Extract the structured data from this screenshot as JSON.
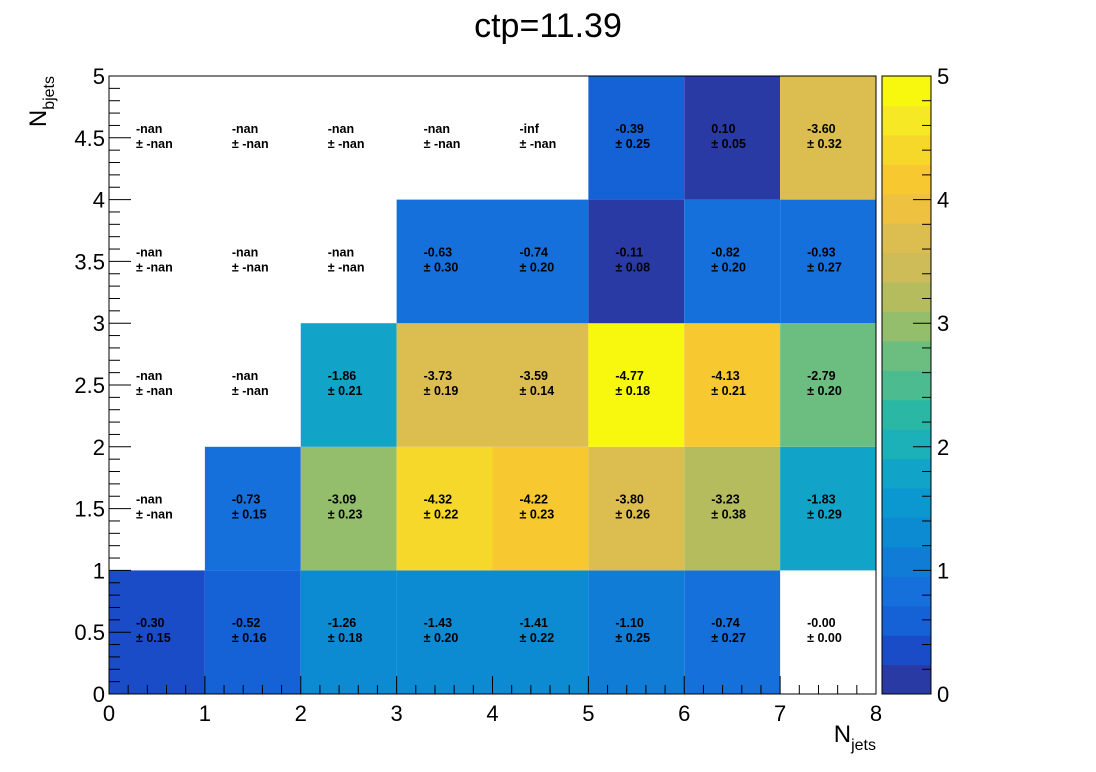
{
  "chart_data": {
    "type": "heatmap",
    "title": "ctp=11.39",
    "xlabel": {
      "main": "N",
      "sub": "jets"
    },
    "ylabel": {
      "main": "N",
      "sub": "bjets"
    },
    "xlim": [
      0,
      8
    ],
    "ylim": [
      0,
      5
    ],
    "x_ticks": [
      "0",
      "1",
      "2",
      "3",
      "4",
      "5",
      "6",
      "7",
      "8"
    ],
    "y_ticks": [
      "0",
      "0.5",
      "1",
      "1.5",
      "2",
      "2.5",
      "3",
      "3.5",
      "4",
      "4.5",
      "5"
    ],
    "colorbar": {
      "min": 0,
      "max": 5,
      "ticks": [
        "0",
        "1",
        "2",
        "3",
        "4",
        "5"
      ]
    },
    "cells": [
      {
        "x": 0,
        "y": 0,
        "value": -0.3,
        "text": "-0.30",
        "error": "± 0.15",
        "fill": 0.32
      },
      {
        "x": 1,
        "y": 0,
        "value": -0.52,
        "text": "-0.52",
        "error": "± 0.16",
        "fill": 0.55
      },
      {
        "x": 2,
        "y": 0,
        "value": -1.26,
        "text": "-1.26",
        "error": "± 0.18",
        "fill": 1.42
      },
      {
        "x": 3,
        "y": 0,
        "value": -1.43,
        "text": "-1.43",
        "error": "± 0.20",
        "fill": 1.42
      },
      {
        "x": 4,
        "y": 0,
        "value": -1.41,
        "text": "-1.41",
        "error": "± 0.22",
        "fill": 1.42
      },
      {
        "x": 5,
        "y": 0,
        "value": -1.1,
        "text": "-1.10",
        "error": "± 0.25",
        "fill": 1.1
      },
      {
        "x": 6,
        "y": 0,
        "value": -0.74,
        "text": "-0.74",
        "error": "± 0.27",
        "fill": 0.85
      },
      {
        "x": 7,
        "y": 0,
        "value": -0.0,
        "text": "-0.00",
        "error": "± 0.00",
        "fill": null
      },
      {
        "x": 0,
        "y": 1,
        "value": null,
        "text": "-nan",
        "error": "± -nan",
        "fill": null
      },
      {
        "x": 1,
        "y": 1,
        "value": -0.73,
        "text": "-0.73",
        "error": "± 0.15",
        "fill": 0.73
      },
      {
        "x": 2,
        "y": 1,
        "value": -3.09,
        "text": "-3.09",
        "error": "± 0.23",
        "fill": 3.09
      },
      {
        "x": 3,
        "y": 1,
        "value": -4.32,
        "text": "-4.32",
        "error": "± 0.22",
        "fill": 4.32
      },
      {
        "x": 4,
        "y": 1,
        "value": -4.22,
        "text": "-4.22",
        "error": "± 0.23",
        "fill": 4.22
      },
      {
        "x": 5,
        "y": 1,
        "value": -3.8,
        "text": "-3.80",
        "error": "± 0.26",
        "fill": 3.8
      },
      {
        "x": 6,
        "y": 1,
        "value": -3.23,
        "text": "-3.23",
        "error": "± 0.38",
        "fill": 3.23
      },
      {
        "x": 7,
        "y": 1,
        "value": -1.83,
        "text": "-1.83",
        "error": "± 0.29",
        "fill": 1.83
      },
      {
        "x": 0,
        "y": 2,
        "value": null,
        "text": "-nan",
        "error": "± -nan",
        "fill": null
      },
      {
        "x": 1,
        "y": 2,
        "value": null,
        "text": "-nan",
        "error": "± -nan",
        "fill": null
      },
      {
        "x": 2,
        "y": 2,
        "value": -1.86,
        "text": "-1.86",
        "error": "± 0.21",
        "fill": 1.86
      },
      {
        "x": 3,
        "y": 2,
        "value": -3.73,
        "text": "-3.73",
        "error": "± 0.19",
        "fill": 3.73
      },
      {
        "x": 4,
        "y": 2,
        "value": -3.59,
        "text": "-3.59",
        "error": "± 0.14",
        "fill": 3.59
      },
      {
        "x": 5,
        "y": 2,
        "value": -4.77,
        "text": "-4.77",
        "error": "± 0.18",
        "fill": 4.77
      },
      {
        "x": 6,
        "y": 2,
        "value": -4.13,
        "text": "-4.13",
        "error": "± 0.21",
        "fill": 4.13
      },
      {
        "x": 7,
        "y": 2,
        "value": -2.79,
        "text": "-2.79",
        "error": "± 0.20",
        "fill": 2.79
      },
      {
        "x": 0,
        "y": 3,
        "value": null,
        "text": "-nan",
        "error": "± -nan",
        "fill": null
      },
      {
        "x": 1,
        "y": 3,
        "value": null,
        "text": "-nan",
        "error": "± -nan",
        "fill": null
      },
      {
        "x": 2,
        "y": 3,
        "value": null,
        "text": "-nan",
        "error": "± -nan",
        "fill": null
      },
      {
        "x": 3,
        "y": 3,
        "value": -0.63,
        "text": "-0.63",
        "error": "± 0.30",
        "fill": 0.75
      },
      {
        "x": 4,
        "y": 3,
        "value": -0.74,
        "text": "-0.74",
        "error": "± 0.20",
        "fill": 0.75
      },
      {
        "x": 5,
        "y": 3,
        "value": -0.11,
        "text": "-0.11",
        "error": "± 0.08",
        "fill": 0.11
      },
      {
        "x": 6,
        "y": 3,
        "value": -0.82,
        "text": "-0.82",
        "error": "± 0.20",
        "fill": 0.95
      },
      {
        "x": 7,
        "y": 3,
        "value": -0.93,
        "text": "-0.93",
        "error": "± 0.27",
        "fill": 0.95
      },
      {
        "x": 0,
        "y": 4,
        "value": null,
        "text": "-nan",
        "error": "± -nan",
        "fill": null
      },
      {
        "x": 1,
        "y": 4,
        "value": null,
        "text": "-nan",
        "error": "± -nan",
        "fill": null
      },
      {
        "x": 2,
        "y": 4,
        "value": null,
        "text": "-nan",
        "error": "± -nan",
        "fill": null
      },
      {
        "x": 3,
        "y": 4,
        "value": null,
        "text": "-nan",
        "error": "± -nan",
        "fill": null
      },
      {
        "x": 4,
        "y": 4,
        "value": null,
        "text": "-inf",
        "error": "± -nan",
        "fill": null
      },
      {
        "x": 5,
        "y": 4,
        "value": -0.39,
        "text": "-0.39",
        "error": "± 0.25",
        "fill": 0.5
      },
      {
        "x": 6,
        "y": 4,
        "value": 0.1,
        "text": "0.10",
        "error": "± 0.05",
        "fill": 0.1
      },
      {
        "x": 7,
        "y": 4,
        "value": -3.6,
        "text": "-3.60",
        "error": "± 0.32",
        "fill": 3.6
      }
    ]
  },
  "colors": {
    "palette": [
      "#2a3aa4",
      "#1a4cc8",
      "#1562d6",
      "#1570dc",
      "#107cd6",
      "#0c8ad2",
      "#0b98d0",
      "#12a4c8",
      "#1cb0b8",
      "#2ab8a4",
      "#4cbc90",
      "#6cbe80",
      "#94be6c",
      "#b4bc5e",
      "#cebc58",
      "#dcbe50",
      "#eec240",
      "#f8c830",
      "#f6d82a",
      "#f6e824",
      "#f8f80e"
    ]
  }
}
